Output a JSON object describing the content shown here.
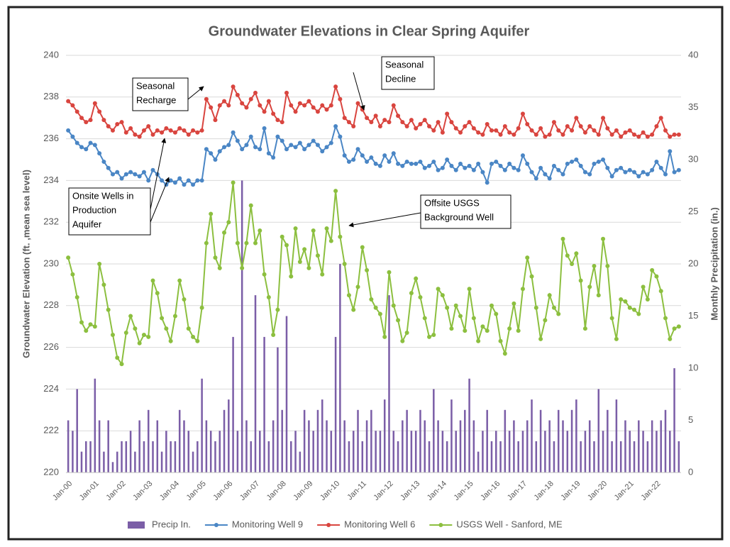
{
  "chart_data": {
    "type": "combo",
    "title": "Groundwater Elevations in Clear Spring Aquifer",
    "y_label": "Groundwater Elevation (ft. ,mean sea level)",
    "y2_label": "Monthly Precipitation (in.)",
    "categories": [
      "Jan-00",
      null,
      null,
      null,
      null,
      null,
      "Jan-01",
      null,
      null,
      null,
      null,
      null,
      "Jan-02",
      null,
      null,
      null,
      null,
      null,
      "Jan-03",
      null,
      null,
      null,
      null,
      null,
      "Jan-04",
      null,
      null,
      null,
      null,
      null,
      "Jan-05",
      null,
      null,
      null,
      null,
      null,
      "Jan-06",
      null,
      null,
      null,
      null,
      null,
      "Jan-07",
      null,
      null,
      null,
      null,
      null,
      "Jan-08",
      null,
      null,
      null,
      null,
      null,
      "Jan-09",
      null,
      null,
      null,
      null,
      null,
      "Jan-10",
      null,
      null,
      null,
      null,
      null,
      "Jan-11",
      null,
      null,
      null,
      null,
      null,
      "Jan-12",
      null,
      null,
      null,
      null,
      null,
      "Jan-13",
      null,
      null,
      null,
      null,
      null,
      "Jan-14",
      null,
      null,
      null,
      null,
      null,
      "Jan-15",
      null,
      null,
      null,
      null,
      null,
      "Jan-16",
      null,
      null,
      null,
      null,
      null,
      "Jan-17",
      null,
      null,
      null,
      null,
      null,
      "Jan-18",
      null,
      null,
      null,
      null,
      null,
      "Jan-19",
      null,
      null,
      null,
      null,
      null,
      "Jan-20",
      null,
      null,
      null,
      null,
      null,
      "Jan-21",
      null,
      null,
      null,
      null,
      null,
      "Jan-22",
      null,
      null,
      null,
      null,
      null
    ],
    "series": [
      {
        "name": "Precip In.",
        "type": "bar",
        "axis": "y2",
        "color": "#7b5ea7",
        "values": [
          5,
          4,
          8,
          2,
          3,
          3,
          9,
          5,
          2,
          5,
          1,
          2,
          3,
          3,
          4,
          2,
          5,
          3,
          6,
          3,
          5,
          2,
          4,
          3,
          3,
          6,
          5,
          4,
          2,
          3,
          9,
          5,
          4,
          3,
          4,
          6,
          7,
          13,
          4,
          28,
          5,
          3,
          17,
          4,
          13,
          3,
          5,
          12,
          6,
          15,
          3,
          4,
          2,
          6,
          5,
          4,
          6,
          7,
          5,
          4,
          13,
          20,
          5,
          3,
          4,
          6,
          3,
          5,
          6,
          4,
          4,
          7,
          17,
          4,
          3,
          5,
          6,
          4,
          4,
          6,
          5,
          3,
          8,
          5,
          4,
          3,
          7,
          4,
          5,
          6,
          9,
          5,
          2,
          4,
          6,
          3,
          4,
          3,
          6,
          4,
          5,
          3,
          4,
          5,
          7,
          3,
          6,
          4,
          5,
          3,
          6,
          5,
          4,
          6,
          7,
          3,
          4,
          5,
          3,
          8,
          4,
          6,
          3,
          7,
          3,
          5,
          4,
          3,
          5,
          4,
          3,
          5,
          4,
          5,
          6,
          4,
          10,
          3
        ]
      },
      {
        "name": "Monitoring Well 9",
        "type": "line",
        "color": "#4a86c5",
        "values": [
          236.4,
          236.1,
          235.8,
          235.6,
          235.5,
          235.8,
          235.7,
          235.3,
          234.9,
          234.6,
          234.3,
          234.4,
          234.1,
          234.3,
          234.4,
          234.3,
          234.2,
          234.4,
          234.0,
          234.5,
          234.3,
          234.0,
          233.8,
          234.0,
          233.9,
          234.1,
          233.8,
          234.0,
          233.8,
          234.0,
          234.0,
          235.5,
          235.3,
          235.0,
          235.4,
          235.6,
          235.7,
          236.3,
          235.9,
          235.5,
          235.7,
          236.1,
          235.6,
          235.5,
          236.5,
          235.3,
          235.1,
          236.1,
          235.9,
          235.5,
          235.7,
          235.6,
          235.8,
          235.5,
          235.7,
          235.9,
          235.7,
          235.4,
          235.6,
          235.8,
          236.6,
          236.1,
          235.2,
          234.9,
          235.0,
          235.5,
          235.2,
          234.9,
          235.1,
          234.8,
          234.7,
          235.2,
          234.9,
          235.3,
          234.8,
          234.7,
          234.9,
          234.8,
          234.8,
          234.9,
          234.6,
          234.7,
          234.9,
          234.5,
          234.6,
          235.0,
          234.7,
          234.5,
          234.8,
          234.6,
          234.7,
          234.5,
          234.8,
          234.4,
          233.9,
          234.8,
          234.9,
          234.7,
          234.5,
          234.8,
          234.6,
          234.5,
          235.2,
          234.8,
          234.4,
          234.1,
          234.6,
          234.3,
          234.1,
          234.7,
          234.5,
          234.3,
          234.8,
          234.9,
          235.0,
          234.7,
          234.4,
          234.3,
          234.8,
          234.9,
          235.0,
          234.6,
          234.2,
          234.5,
          234.6,
          234.4,
          234.5,
          234.4,
          234.2,
          234.4,
          234.3,
          234.5,
          234.9,
          234.6,
          234.3,
          235.4,
          234.4,
          234.5
        ]
      },
      {
        "name": "Monitoring Well 6",
        "type": "line",
        "color": "#d9453f",
        "values": [
          237.8,
          237.6,
          237.3,
          237.0,
          236.8,
          236.9,
          237.7,
          237.3,
          236.9,
          236.6,
          236.4,
          236.7,
          236.8,
          236.3,
          236.5,
          236.2,
          236.1,
          236.4,
          236.6,
          236.2,
          236.4,
          236.3,
          236.5,
          236.4,
          236.3,
          236.5,
          236.4,
          236.2,
          236.4,
          236.3,
          236.4,
          237.9,
          237.5,
          236.9,
          237.6,
          237.8,
          237.6,
          238.5,
          238.1,
          237.7,
          237.5,
          237.9,
          238.2,
          237.6,
          237.3,
          237.8,
          237.2,
          236.9,
          236.8,
          238.2,
          237.6,
          237.3,
          237.7,
          237.6,
          237.8,
          237.5,
          237.3,
          237.6,
          237.4,
          237.6,
          238.5,
          237.9,
          237.0,
          236.8,
          236.6,
          237.7,
          237.4,
          237.0,
          236.8,
          237.1,
          236.6,
          236.9,
          236.8,
          237.6,
          237.1,
          236.8,
          236.6,
          236.9,
          236.5,
          236.7,
          236.9,
          236.6,
          236.4,
          236.8,
          236.3,
          237.2,
          236.8,
          236.5,
          236.3,
          236.6,
          236.8,
          236.5,
          236.3,
          236.2,
          236.7,
          236.4,
          236.4,
          236.2,
          236.6,
          236.3,
          236.2,
          236.5,
          237.2,
          236.7,
          236.4,
          236.2,
          236.5,
          236.1,
          236.2,
          236.8,
          236.4,
          236.2,
          236.6,
          236.4,
          237.0,
          236.6,
          236.3,
          236.6,
          236.4,
          236.2,
          237.0,
          236.5,
          236.2,
          236.4,
          236.1,
          236.3,
          236.4,
          236.2,
          236.1,
          236.3,
          236.1,
          236.2,
          236.6,
          237.0,
          236.4,
          236.1,
          236.2,
          236.2
        ]
      },
      {
        "name": "USGS Well - Sanford, ME",
        "type": "line",
        "color": "#8cbf3f",
        "values": [
          230.3,
          229.5,
          228.4,
          227.2,
          226.8,
          227.1,
          227.0,
          230.0,
          229.0,
          227.8,
          226.6,
          225.5,
          225.2,
          226.7,
          227.5,
          226.9,
          226.2,
          226.6,
          226.5,
          229.2,
          228.6,
          227.4,
          226.9,
          226.3,
          227.5,
          229.2,
          228.3,
          226.9,
          226.5,
          226.3,
          227.9,
          231.0,
          232.4,
          230.3,
          229.8,
          231.5,
          232.0,
          233.9,
          231.0,
          229.8,
          231.0,
          232.8,
          231.0,
          231.6,
          229.5,
          228.4,
          226.6,
          227.8,
          231.3,
          230.9,
          229.4,
          231.7,
          230.1,
          230.7,
          229.8,
          231.6,
          230.4,
          229.5,
          231.7,
          231.1,
          233.5,
          231.3,
          230.0,
          228.5,
          227.8,
          228.9,
          230.8,
          229.7,
          228.3,
          227.9,
          227.6,
          226.5,
          229.6,
          228.0,
          227.3,
          226.3,
          226.7,
          228.6,
          229.3,
          228.4,
          227.4,
          226.5,
          226.6,
          228.8,
          228.5,
          227.9,
          226.9,
          228.0,
          227.5,
          226.8,
          228.8,
          227.4,
          226.3,
          227.0,
          226.8,
          228.0,
          227.6,
          226.3,
          225.7,
          226.9,
          228.1,
          226.8,
          228.8,
          230.3,
          229.4,
          227.9,
          226.4,
          227.3,
          228.5,
          227.9,
          227.6,
          231.2,
          230.4,
          230.0,
          230.5,
          229.2,
          226.9,
          228.9,
          229.9,
          228.5,
          231.2,
          229.9,
          227.4,
          226.4,
          228.3,
          228.2,
          227.9,
          227.8,
          227.6,
          228.9,
          228.3,
          229.7,
          229.4,
          228.7,
          227.4,
          226.4,
          226.9,
          227.0
        ]
      }
    ],
    "ylim": [
      220,
      240
    ],
    "yticks": [
      220,
      222,
      224,
      226,
      228,
      230,
      232,
      234,
      236,
      238,
      240
    ],
    "y2lim": [
      0,
      40
    ],
    "y2ticks": [
      0,
      5,
      10,
      15,
      20,
      25,
      30,
      35,
      40
    ],
    "grid": true,
    "legend": "bottom",
    "annotations": [
      {
        "lines": [
          "Seasonal",
          "Recharge"
        ]
      },
      {
        "lines": [
          "Seasonal",
          "Decline"
        ]
      },
      {
        "lines": [
          "Onsite Wells in",
          "Production",
          "Aquifer"
        ]
      },
      {
        "lines": [
          "Offsite USGS",
          "Background Well"
        ]
      }
    ]
  }
}
